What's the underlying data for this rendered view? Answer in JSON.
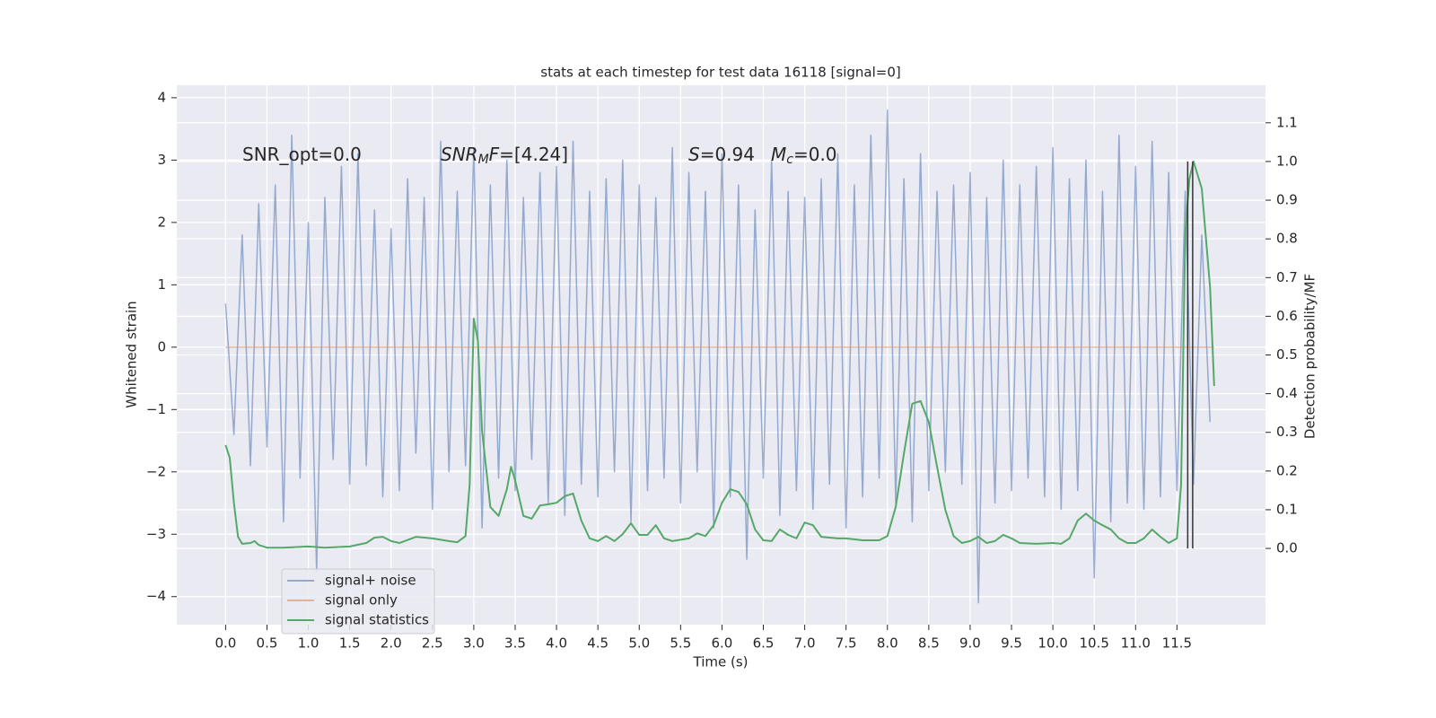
{
  "chart_data": {
    "type": "line",
    "title": "stats at each timestep for test data 16118 [signal=0]",
    "xlabel": "Time (s)",
    "ylabel": "Whitened strain",
    "y2label": "Detection probability/MF",
    "xlim": [
      -0.59,
      12.57
    ],
    "ylim": [
      -4.45,
      4.2
    ],
    "y2lim": [
      -0.197,
      1.197
    ],
    "xticks": [
      {
        "value": 0,
        "label": "0.0"
      },
      0.5,
      {
        "value": 1,
        "label": "1.0"
      },
      1.5,
      {
        "value": 2,
        "label": "2.0"
      },
      2.5,
      {
        "value": 3,
        "label": "3.0"
      },
      3.5,
      {
        "value": 4,
        "label": "4.0"
      },
      4.5,
      {
        "value": 5,
        "label": "5.0"
      },
      5.5,
      {
        "value": 6,
        "label": "6.0"
      },
      6.5,
      {
        "value": 7,
        "label": "7.0"
      },
      7.5,
      {
        "value": 8,
        "label": "8.0"
      },
      8.5,
      {
        "value": 9,
        "label": "9.0"
      },
      9.5,
      {
        "value": 10,
        "label": "10.0"
      },
      10.5,
      {
        "value": 11,
        "label": "11.0"
      },
      11.5
    ],
    "yticks": [
      {
        "value": -4,
        "label": "−4"
      },
      {
        "value": -3,
        "label": "−3"
      },
      {
        "value": -2,
        "label": "−2"
      },
      {
        "value": -1,
        "label": "−1"
      },
      0,
      1,
      2,
      3,
      4
    ],
    "y2ticks": [
      {
        "value": 0,
        "label": "0.0"
      },
      0.1,
      0.2,
      0.3,
      0.4,
      0.5,
      0.6,
      0.7,
      0.8,
      0.9,
      {
        "value": 1,
        "label": "1.0"
      },
      1.1
    ],
    "grid": true,
    "legend": "lower left",
    "annotations": [
      [
        {
          "text": "SNR_opt=0.0"
        }
      ],
      [
        {
          "text": "SNR",
          "italic": true
        },
        {
          "text": "M",
          "italic": true,
          "sub": true
        },
        {
          "text": "F",
          "italic": true
        },
        {
          "text": "=[4.24]"
        }
      ],
      [
        {
          "text": "S",
          "italic": true
        },
        {
          "text": "=0.94"
        }
      ],
      [
        {
          "text": "M",
          "italic": true
        },
        {
          "text": "c",
          "italic": true,
          "sub": true
        },
        {
          "text": "=0.0"
        }
      ]
    ],
    "vlines": {
      "x": [
        11.63,
        11.69
      ],
      "ymin": 0,
      "ymax": 1,
      "axis": "y2",
      "color": "#333333"
    },
    "series": [
      {
        "name": "signal+ noise",
        "color": "#4c72b0",
        "alpha": 0.55,
        "axis": "y",
        "x": [
          0.0,
          0.1,
          0.2,
          0.3,
          0.4,
          0.5,
          0.6,
          0.7,
          0.8,
          0.9,
          1.0,
          1.1,
          1.2,
          1.3,
          1.4,
          1.5,
          1.6,
          1.7,
          1.8,
          1.9,
          2.0,
          2.1,
          2.2,
          2.3,
          2.4,
          2.5,
          2.6,
          2.7,
          2.8,
          2.9,
          3.0,
          3.1,
          3.2,
          3.3,
          3.4,
          3.5,
          3.6,
          3.7,
          3.8,
          3.9,
          4.0,
          4.1,
          4.2,
          4.3,
          4.4,
          4.5,
          4.6,
          4.7,
          4.8,
          4.9,
          5.0,
          5.1,
          5.2,
          5.3,
          5.4,
          5.5,
          5.6,
          5.7,
          5.8,
          5.9,
          6.0,
          6.1,
          6.2,
          6.3,
          6.4,
          6.5,
          6.6,
          6.7,
          6.8,
          6.9,
          7.0,
          7.1,
          7.2,
          7.3,
          7.4,
          7.5,
          7.6,
          7.7,
          7.8,
          7.9,
          8.0,
          8.1,
          8.2,
          8.3,
          8.4,
          8.5,
          8.6,
          8.7,
          8.8,
          8.9,
          9.0,
          9.1,
          9.2,
          9.3,
          9.4,
          9.5,
          9.6,
          9.7,
          9.8,
          9.9,
          10.0,
          10.1,
          10.2,
          10.3,
          10.4,
          10.5,
          10.6,
          10.7,
          10.8,
          10.9,
          11.0,
          11.1,
          11.2,
          11.3,
          11.4,
          11.5,
          11.6,
          11.7,
          11.8,
          11.9
        ],
        "values": [
          0.7,
          -1.4,
          1.8,
          -1.9,
          2.3,
          -1.6,
          2.6,
          -2.8,
          3.4,
          -2.1,
          2.0,
          -3.6,
          2.4,
          -1.8,
          2.9,
          -2.2,
          3.1,
          -1.9,
          2.2,
          -2.4,
          1.9,
          -2.3,
          2.7,
          -1.7,
          2.4,
          -2.6,
          3.3,
          -2.0,
          2.5,
          -1.9,
          3.2,
          -2.9,
          2.6,
          -2.1,
          3.0,
          -2.3,
          2.4,
          -1.8,
          2.8,
          -2.5,
          2.9,
          -2.7,
          3.3,
          -2.2,
          2.5,
          -2.4,
          2.7,
          -2.0,
          3.0,
          -2.8,
          2.6,
          -2.3,
          2.4,
          -2.1,
          3.2,
          -2.5,
          2.8,
          -2.0,
          2.5,
          -2.9,
          3.1,
          -2.4,
          2.6,
          -3.4,
          2.2,
          -2.1,
          3.0,
          -2.7,
          2.5,
          -2.3,
          2.4,
          -2.6,
          2.7,
          -2.2,
          3.1,
          -2.9,
          2.6,
          -2.4,
          3.4,
          -2.1,
          3.8,
          -2.5,
          2.7,
          -2.8,
          3.1,
          -2.3,
          2.5,
          -2.0,
          2.6,
          -2.2,
          2.8,
          -4.1,
          2.4,
          -2.5,
          3.0,
          -2.3,
          2.6,
          -2.1,
          2.9,
          -2.4,
          3.2,
          -2.6,
          2.7,
          -2.3,
          3.0,
          -3.7,
          2.5,
          -2.8,
          3.4,
          -2.5,
          2.9,
          -2.6,
          3.3,
          -2.4,
          2.8,
          -2.3,
          2.5,
          -2.2,
          1.8,
          -1.2
        ]
      },
      {
        "name": "signal only",
        "color": "#dd8452",
        "alpha": 0.55,
        "axis": "y",
        "x": [
          0.0,
          11.95
        ],
        "values": [
          0,
          0
        ]
      },
      {
        "name": "signal statistics",
        "color": "#55a868",
        "alpha": 1,
        "axis": "y2",
        "x": [
          0.0,
          0.05,
          0.1,
          0.15,
          0.2,
          0.3,
          0.35,
          0.4,
          0.5,
          0.7,
          1.0,
          1.2,
          1.5,
          1.7,
          1.8,
          1.9,
          2.0,
          2.1,
          2.3,
          2.5,
          2.7,
          2.8,
          2.9,
          2.95,
          3.0,
          3.05,
          3.1,
          3.2,
          3.3,
          3.4,
          3.45,
          3.5,
          3.6,
          3.7,
          3.8,
          3.9,
          4.0,
          4.1,
          4.2,
          4.3,
          4.4,
          4.5,
          4.6,
          4.7,
          4.8,
          4.9,
          5.0,
          5.1,
          5.2,
          5.3,
          5.4,
          5.6,
          5.7,
          5.8,
          5.9,
          6.0,
          6.1,
          6.2,
          6.3,
          6.4,
          6.5,
          6.6,
          6.7,
          6.8,
          6.9,
          7.0,
          7.1,
          7.2,
          7.4,
          7.5,
          7.7,
          7.9,
          8.0,
          8.1,
          8.2,
          8.3,
          8.4,
          8.5,
          8.6,
          8.7,
          8.8,
          8.9,
          9.0,
          9.1,
          9.2,
          9.3,
          9.4,
          9.5,
          9.6,
          9.8,
          10.0,
          10.1,
          10.2,
          10.3,
          10.4,
          10.5,
          10.6,
          10.7,
          10.8,
          10.9,
          11.0,
          11.1,
          11.2,
          11.3,
          11.4,
          11.5,
          11.55,
          11.6,
          11.65,
          11.7,
          11.8,
          11.9,
          11.95
        ],
        "values": [
          0.267,
          0.234,
          0.118,
          0.03,
          0.012,
          0.014,
          0.019,
          0.009,
          0.002,
          0.002,
          0.005,
          0.002,
          0.005,
          0.014,
          0.028,
          0.03,
          0.019,
          0.014,
          0.03,
          0.026,
          0.019,
          0.016,
          0.032,
          0.165,
          0.594,
          0.536,
          0.304,
          0.107,
          0.084,
          0.153,
          0.211,
          0.176,
          0.084,
          0.077,
          0.111,
          0.114,
          0.118,
          0.135,
          0.142,
          0.072,
          0.026,
          0.019,
          0.032,
          0.019,
          0.037,
          0.065,
          0.035,
          0.035,
          0.06,
          0.026,
          0.019,
          0.026,
          0.039,
          0.032,
          0.06,
          0.118,
          0.153,
          0.146,
          0.114,
          0.049,
          0.021,
          0.019,
          0.049,
          0.035,
          0.026,
          0.067,
          0.06,
          0.03,
          0.026,
          0.026,
          0.021,
          0.021,
          0.032,
          0.107,
          0.246,
          0.374,
          0.381,
          0.327,
          0.211,
          0.1,
          0.032,
          0.014,
          0.019,
          0.03,
          0.014,
          0.019,
          0.035,
          0.026,
          0.014,
          0.012,
          0.014,
          0.012,
          0.026,
          0.072,
          0.09,
          0.072,
          0.06,
          0.049,
          0.026,
          0.014,
          0.014,
          0.026,
          0.049,
          0.03,
          0.014,
          0.026,
          0.165,
          0.814,
          0.954,
          1.0,
          0.93,
          0.675,
          0.42
        ]
      }
    ]
  }
}
